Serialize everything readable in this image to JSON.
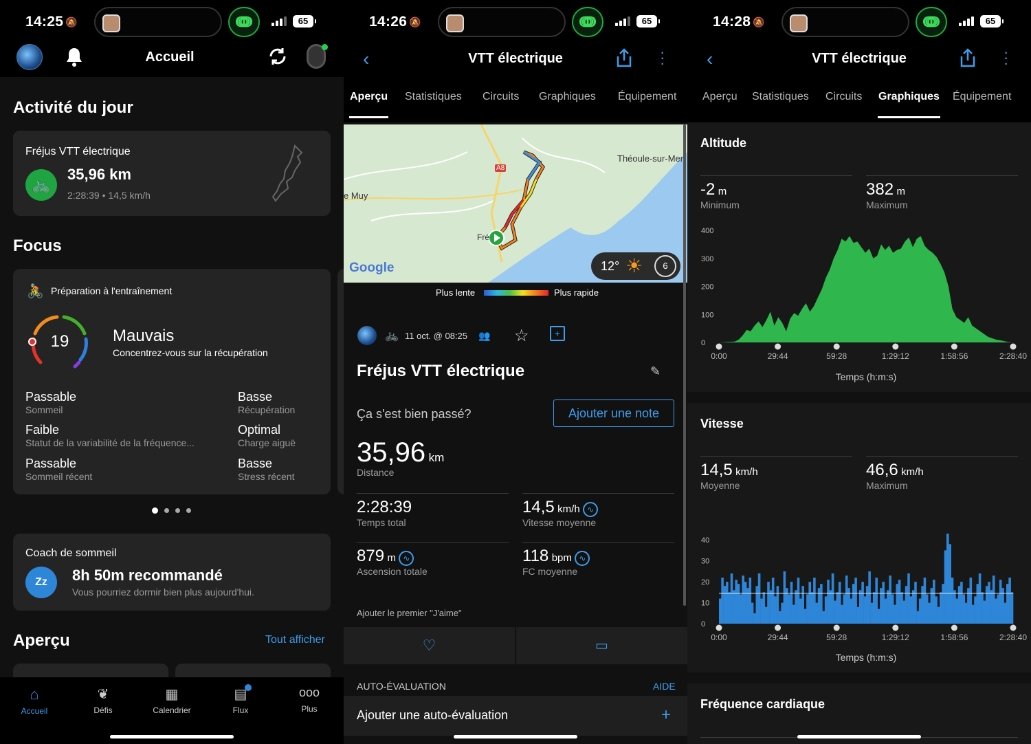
{
  "status": {
    "time1": "14:25",
    "time2": "14:26",
    "time3": "14:28",
    "battery": "65",
    "link": "ↈ"
  },
  "home": {
    "header_title": "Accueil",
    "activity_section": "Activité du jour",
    "activity_name": "Fréjus VTT électrique",
    "activity_distance": "35,96 km",
    "activity_sub": "2:28:39 • 14,5 km/h",
    "focus_title": "Focus",
    "training_title": "Préparation à l'entraînement",
    "training_score": "19",
    "training_level": "Mauvais",
    "training_advice": "Concentrez-vous sur la récupération",
    "factors": [
      {
        "value": "Passable",
        "label": "Sommeil"
      },
      {
        "value": "Basse",
        "label": "Récupération"
      },
      {
        "value": "Faible",
        "label": "Statut de la variabilité de la fréquence..."
      },
      {
        "value": "Optimal",
        "label": "Charge aiguë"
      },
      {
        "value": "Passable",
        "label": "Sommeil récent"
      },
      {
        "value": "Basse",
        "label": "Stress récent"
      }
    ],
    "sleep_title": "Coach de sommeil",
    "sleep_value": "8h 50m recommandé",
    "sleep_sub": "Vous pourriez dormir bien plus aujourd'hui.",
    "overview_title": "Aperçu",
    "overview_link": "Tout afficher",
    "nav": [
      "Accueil",
      "Défis",
      "Calendrier",
      "Flux",
      "Plus"
    ]
  },
  "detail": {
    "title": "VTT électrique",
    "tabs": [
      "Aperçu",
      "Statistiques",
      "Circuits",
      "Graphiques",
      "Équipement"
    ],
    "map_labels": {
      "city1": "Théoule-sur-Mer",
      "city2": "e Muy",
      "road": "A8",
      "city3": "Fré",
      "brand": "Google"
    },
    "weather_temp": "12°",
    "weather_wind": "6",
    "legend_slow": "Plus lente",
    "legend_fast": "Plus rapide",
    "date": "11 oct. @ 08:25",
    "activity_title": "Fréjus VTT électrique",
    "prompt": "Ça s'est bien passé?",
    "note_button": "Ajouter une note",
    "distance": "35,96",
    "distance_unit": "km",
    "distance_label": "Distance",
    "stats": [
      {
        "value": "2:28:39",
        "unit": "",
        "label": "Temps total"
      },
      {
        "value": "14,5",
        "unit": "km/h",
        "label": "Vitesse moyenne"
      },
      {
        "value": "879",
        "unit": "m",
        "label": "Ascension totale"
      },
      {
        "value": "118",
        "unit": "bpm",
        "label": "FC moyenne"
      }
    ],
    "like_text": "Ajouter le premier \"J'aime\"",
    "self_eval_header": "AUTO-ÉVALUATION",
    "self_eval_help": "AIDE",
    "self_eval_add": "Ajouter une auto-évaluation"
  },
  "charts_page": {
    "altitude_title": "Altitude",
    "alt_min": "-2",
    "alt_min_unit": "m",
    "alt_min_label": "Minimum",
    "alt_max": "382",
    "alt_max_unit": "m",
    "alt_max_label": "Maximum",
    "speed_title": "Vitesse",
    "spd_avg": "14,5",
    "spd_avg_unit": "km/h",
    "spd_avg_label": "Moyenne",
    "spd_max": "46,6",
    "spd_max_unit": "km/h",
    "spd_max_label": "Maximum",
    "hr_title": "Fréquence cardiaque",
    "xlabel": "Temps (h:m:s)"
  },
  "chart_data": [
    {
      "type": "area",
      "title": "Altitude",
      "xlabel": "Temps (h:m:s)",
      "x_ticks": [
        "0:00",
        "29:44",
        "59:28",
        "1:29:12",
        "1:58:56",
        "2:28:40"
      ],
      "y_ticks": [
        "0",
        "100",
        "200",
        "300",
        "400"
      ],
      "ylim": [
        0,
        400
      ],
      "color": "#2fb64c",
      "series": [
        {
          "x": [
            0,
            4,
            8,
            10,
            12,
            14,
            16,
            18,
            20,
            22,
            24,
            26,
            28,
            30,
            32,
            34,
            36,
            38,
            40,
            42,
            44,
            46,
            48,
            50,
            52,
            54,
            56,
            58,
            60,
            62,
            64,
            66,
            68,
            70,
            72,
            74,
            76,
            78,
            80,
            82,
            84,
            86,
            88,
            90,
            92,
            94,
            96,
            98,
            100,
            102,
            104,
            106,
            108,
            110,
            112,
            114,
            116,
            118,
            120,
            122,
            124,
            126,
            128,
            130,
            132,
            134,
            136,
            138,
            140,
            142,
            144,
            146,
            148.7
          ],
          "y": [
            0,
            2,
            3,
            10,
            25,
            45,
            40,
            60,
            75,
            55,
            80,
            110,
            60,
            90,
            70,
            40,
            85,
            105,
            95,
            120,
            140,
            110,
            130,
            160,
            190,
            230,
            260,
            300,
            330,
            370,
            360,
            380,
            355,
            360,
            340,
            320,
            335,
            300,
            310,
            350,
            330,
            345,
            320,
            330,
            335,
            360,
            375,
            340,
            370,
            380,
            345,
            330,
            320,
            305,
            280,
            250,
            200,
            120,
            90,
            80,
            70,
            90,
            60,
            50,
            40,
            30,
            20,
            15,
            10,
            8,
            5,
            2,
            0
          ]
        }
      ]
    },
    {
      "type": "area",
      "title": "Vitesse",
      "xlabel": "Temps (h:m:s)",
      "x_ticks": [
        "0:00",
        "29:44",
        "59:28",
        "1:29:12",
        "1:58:56",
        "2:28:40"
      ],
      "y_ticks": [
        "0",
        "10",
        "20",
        "30",
        "40"
      ],
      "ylim": [
        0,
        45
      ],
      "color": "#2e86d9",
      "average": 14.5,
      "series": [
        {
          "x_max": 148.7,
          "y": [
            12,
            22,
            18,
            20,
            15,
            24,
            16,
            21,
            19,
            14,
            23,
            20,
            17,
            22,
            10,
            5,
            18,
            24,
            12,
            15,
            8,
            20,
            16,
            22,
            13,
            18,
            6,
            10,
            25,
            17,
            14,
            20,
            9,
            16,
            22,
            12,
            18,
            7,
            14,
            20,
            15,
            22,
            10,
            17,
            19,
            6,
            13,
            21,
            16,
            24,
            11,
            15,
            20,
            9,
            14,
            23,
            17,
            12,
            19,
            22,
            8,
            16,
            20,
            13,
            18,
            25,
            10,
            15,
            22,
            7,
            17,
            20,
            12,
            16,
            23,
            14,
            9,
            19,
            21,
            15,
            11,
            18,
            24,
            13,
            16,
            20,
            6,
            12,
            18,
            22,
            14,
            10,
            17,
            21,
            13,
            8,
            15,
            19,
            35,
            43,
            38,
            22,
            16,
            12,
            18,
            20,
            14,
            10,
            17,
            22,
            9,
            13,
            19,
            24,
            15,
            11,
            18,
            20,
            16,
            23,
            12,
            14,
            21,
            17,
            10,
            19,
            22,
            15
          ]
        }
      ]
    }
  ]
}
